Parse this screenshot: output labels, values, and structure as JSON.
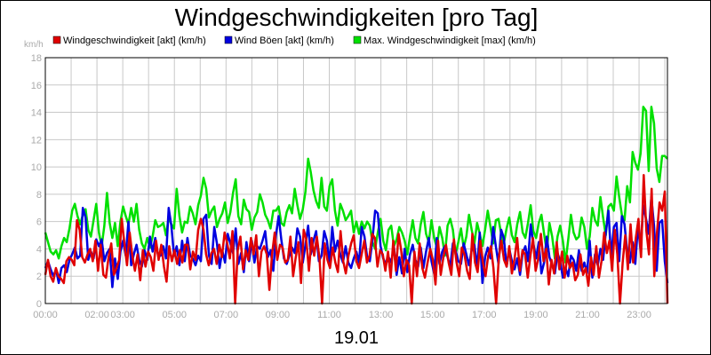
{
  "chart_data": {
    "type": "line",
    "title": "Windgeschwindigkeiten [pro Tag]",
    "xlabel": "19.01",
    "unit_label": "km/h",
    "ylim": [
      0,
      18
    ],
    "y_ticks": [
      0,
      2,
      4,
      6,
      8,
      10,
      12,
      14,
      16,
      18
    ],
    "xlim": [
      0,
      24.1
    ],
    "x_ticks": [
      {
        "t": 0,
        "label": "00:00"
      },
      {
        "t": 2,
        "label": "02:00"
      },
      {
        "t": 3,
        "label": "03:00"
      },
      {
        "t": 5,
        "label": "05:00"
      },
      {
        "t": 7,
        "label": "07:00"
      },
      {
        "t": 9,
        "label": "09:00"
      },
      {
        "t": 11,
        "label": "11:00"
      },
      {
        "t": 13,
        "label": "13:00"
      },
      {
        "t": 15,
        "label": "15:00"
      },
      {
        "t": 17,
        "label": "17:00"
      },
      {
        "t": 19,
        "label": "19:00"
      },
      {
        "t": 21,
        "label": "21:00"
      },
      {
        "t": 23,
        "label": "23:00"
      }
    ],
    "grid": true,
    "legend_position": "top",
    "series": [
      {
        "key": "max",
        "name": "Max. Windgeschwindigkeit [max] (km/h)",
        "color": "#00e000",
        "values": [
          5.2,
          4.5,
          3.8,
          3.6,
          3.9,
          3.3,
          4.2,
          4.8,
          4.5,
          5.5,
          6.8,
          7.3,
          6.4,
          5.8,
          6.5,
          6.9,
          5.4,
          4.9,
          6.1,
          7.3,
          5.2,
          4.2,
          5.7,
          8.1,
          5.9,
          4.8,
          5.9,
          4.2,
          6.0,
          7.1,
          6.4,
          5.8,
          7.0,
          6.0,
          7.3,
          5.4,
          4.4,
          4.0,
          4.8,
          4.1,
          4.9,
          6.1,
          5.6,
          5.7,
          5.9,
          5.0,
          6.3,
          5.8,
          5.5,
          8.4,
          6.4,
          5.2,
          6.0,
          5.9,
          7.1,
          6.6,
          5.8,
          7.2,
          7.9,
          9.2,
          8.4,
          6.3,
          6.8,
          7.1,
          5.6,
          6.2,
          6.6,
          7.4,
          5.9,
          6.7,
          8.1,
          9.1,
          6.4,
          5.8,
          7.6,
          6.9,
          6.7,
          5.4,
          6.3,
          6.7,
          8.0,
          7.4,
          6.5,
          6.1,
          5.5,
          6.8,
          6.8,
          7.1,
          5.9,
          5.7,
          6.7,
          7.2,
          6.6,
          8.4,
          7.2,
          6.2,
          6.9,
          8.2,
          10.6,
          9.6,
          8.3,
          7.5,
          7.0,
          9.2,
          7.1,
          6.8,
          8.6,
          9.1,
          6.8,
          5.7,
          7.3,
          6.8,
          6.1,
          6.4,
          6.8,
          5.2,
          6.0,
          5.1,
          6.0,
          5.5,
          6.0,
          5.7,
          4.5,
          4.0,
          5.2,
          6.2,
          4.6,
          3.9,
          5.4,
          5.7,
          4.2,
          4.7,
          5.6,
          5.2,
          4.6,
          3.6,
          4.9,
          6.1,
          4.8,
          4.4,
          5.8,
          6.7,
          5.1,
          4.5,
          6.1,
          4.8,
          4.1,
          5.6,
          4.8,
          3.5,
          5.7,
          6.2,
          5.4,
          3.6,
          4.5,
          5.5,
          4.1,
          4.9,
          6.5,
          5.4,
          4.4,
          5.9,
          5.1,
          4.2,
          5.4,
          6.8,
          5.6,
          4.4,
          6.1,
          6.2,
          5.1,
          4.4,
          5.5,
          6.3,
          5.0,
          4.5,
          5.8,
          6.7,
          5.2,
          4.8,
          5.9,
          7.2,
          5.3,
          4.8,
          5.9,
          6.5,
          5.1,
          3.8,
          5.9,
          4.9,
          3.3,
          4.9,
          5.7,
          4.6,
          3.0,
          4.7,
          6.5,
          5.2,
          4.7,
          4.9,
          6.3,
          5.6,
          4.0,
          4.9,
          7.0,
          6.1,
          5.7,
          7.8,
          6.3,
          5.0,
          7.1,
          7.3,
          6.8,
          9.3,
          7.8,
          6.5,
          6.1,
          8.6,
          7.4,
          11.1,
          10.3,
          9.8,
          11.0,
          14.4,
          14.1,
          9.7,
          14.4,
          13.2,
          9.9,
          8.9,
          10.8,
          10.8,
          10.6
        ]
      },
      {
        "key": "boeen",
        "name": "Wind Böen [akt] (km/h)",
        "color": "#0000e0",
        "values": [
          2.6,
          3.1,
          2.5,
          2.0,
          2.5,
          1.5,
          2.6,
          2.8,
          2.3,
          3.2,
          3.6,
          4.1,
          3.3,
          3.5,
          7.0,
          6.3,
          3.2,
          3.8,
          3.3,
          4.7,
          4.2,
          4.7,
          3.1,
          3.7,
          4.0,
          1.2,
          3.3,
          1.8,
          3.8,
          4.6,
          3.5,
          6.0,
          2.8,
          3.6,
          4.3,
          3.2,
          2.7,
          3.9,
          3.2,
          4.9,
          3.8,
          4.8,
          3.6,
          3.5,
          4.2,
          3.3,
          7.0,
          5.7,
          3.5,
          4.2,
          2.8,
          4.6,
          3.1,
          4.8,
          3.5,
          3.3,
          2.8,
          3.5,
          3.1,
          6.2,
          6.5,
          3.5,
          2.9,
          5.6,
          4.4,
          2.6,
          3.9,
          3.0,
          5.1,
          4.4,
          3.7,
          5.5,
          2.9,
          3.7,
          2.3,
          4.5,
          3.1,
          4.6,
          3.0,
          4.2,
          4.0,
          4.6,
          5.3,
          3.4,
          3.9,
          2.4,
          5.0,
          6.4,
          4.7,
          3.3,
          2.9,
          3.5,
          4.1,
          3.7,
          5.5,
          4.9,
          3.0,
          4.3,
          5.7,
          3.6,
          4.6,
          5.3,
          3.1,
          3.5,
          5.3,
          4.6,
          2.9,
          5.6,
          3.8,
          4.6,
          3.6,
          3.0,
          4.2,
          3.0,
          2.6,
          3.3,
          3.8,
          3.0,
          5.6,
          4.9,
          3.4,
          3.1,
          4.7,
          6.8,
          6.6,
          4.2,
          3.3,
          2.9,
          3.4,
          3.0,
          4.2,
          2.1,
          3.4,
          2.2,
          4.0,
          2.3,
          3.6,
          4.3,
          3.2,
          2.7,
          4.1,
          2.6,
          3.8,
          4.8,
          3.1,
          2.2,
          4.8,
          2.9,
          3.8,
          4.2,
          3.4,
          2.7,
          4.4,
          3.9,
          3.1,
          2.9,
          4.4,
          3.6,
          2.8,
          3.9,
          4.3,
          2.6,
          5.2,
          1.5,
          3.4,
          4.1,
          3.3,
          5.6,
          4.2,
          2.9,
          5.4,
          4.8,
          2.7,
          4.0,
          3.1,
          2.5,
          3.3,
          2.1,
          3.7,
          4.2,
          3.1,
          5.8,
          4.4,
          3.3,
          4.5,
          2.2,
          3.0,
          4.9,
          3.4,
          2.8,
          2.2,
          3.7,
          3.1,
          1.9,
          2.6,
          2.0,
          3.5,
          3.2,
          2.4,
          3.9,
          2.4,
          3.0,
          2.2,
          4.6,
          1.9,
          3.6,
          2.8,
          4.0,
          3.2,
          5.2,
          6.8,
          3.4,
          5.6,
          5.9,
          3.1,
          6.4,
          5.8,
          3.8,
          3.0,
          4.5,
          2.9,
          5.7,
          3.9,
          7.2,
          6.2,
          5.1,
          7.8,
          5.7,
          2.4,
          5.9,
          6.1,
          3.1,
          1.5
        ]
      },
      {
        "key": "akt",
        "name": "Windgeschwindigkeit [akt] (km/h)",
        "color": "#e00000",
        "values": [
          2.1,
          3.2,
          2.0,
          1.6,
          2.6,
          2.0,
          1.8,
          1.5,
          3.1,
          3.4,
          3.2,
          2.8,
          6.1,
          5.4,
          3.4,
          3.0,
          3.6,
          4.0,
          3.1,
          4.6,
          2.4,
          4.3,
          2.1,
          1.9,
          3.4,
          4.4,
          2.1,
          2.6,
          3.2,
          6.2,
          4.4,
          2.8,
          5.2,
          3.5,
          2.4,
          3.6,
          1.7,
          3.9,
          2.7,
          3.8,
          3.4,
          2.4,
          4.6,
          3.2,
          4.3,
          2.7,
          1.6,
          4.2,
          3.1,
          3.9,
          2.9,
          3.9,
          3.0,
          4.3,
          4.3,
          2.5,
          3.8,
          3.2,
          5.4,
          6.2,
          5.4,
          3.6,
          2.8,
          3.7,
          4.0,
          2.9,
          4.3,
          3.4,
          5.2,
          4.4,
          3.3,
          5.3,
          0.0,
          3.9,
          4.9,
          2.5,
          3.9,
          3.2,
          4.8,
          3.6,
          5.0,
          2.0,
          3.8,
          4.2,
          3.6,
          1.0,
          3.6,
          5.2,
          3.2,
          4.3,
          4.1,
          3.0,
          3.2,
          4.9,
          2.0,
          3.4,
          4.5,
          1.5,
          5.4,
          4.7,
          2.4,
          4.8,
          3.5,
          4.9,
          3.3,
          0.0,
          4.4,
          3.2,
          2.6,
          4.1,
          3.0,
          2.3,
          5.3,
          3.1,
          2.2,
          3.5,
          4.4,
          5.0,
          3.1,
          2.6,
          3.6,
          4.6,
          3.0,
          3.5,
          5.1,
          4.8,
          2.7,
          3.9,
          3.6,
          2.4,
          3.8,
          1.9,
          4.6,
          2.4,
          5.1,
          3.9,
          2.0,
          3.2,
          2.8,
          0.0,
          3.8,
          2.0,
          4.4,
          2.6,
          1.9,
          3.0,
          4.0,
          3.2,
          1.4,
          4.6,
          2.1,
          3.4,
          4.3,
          3.0,
          2.1,
          4.7,
          3.0,
          2.0,
          4.1,
          3.6,
          2.4,
          1.8,
          5.1,
          3.0,
          2.3,
          4.6,
          3.0,
          2.0,
          3.5,
          4.2,
          2.6,
          0.0,
          3.3,
          4.6,
          3.2,
          2.7,
          4.2,
          2.2,
          3.3,
          4.8,
          2.4,
          3.9,
          3.6,
          1.9,
          3.5,
          4.8,
          2.4,
          3.3,
          5.1,
          3.1,
          4.0,
          1.4,
          3.2,
          2.2,
          4.5,
          2.5,
          3.8,
          1.9,
          3.5,
          2.6,
          3.0,
          1.7,
          2.1,
          3.6,
          2.1,
          2.6,
          1.3,
          3.4,
          2.1,
          4.2,
          1.9,
          3.1,
          5.2,
          3.7,
          4.6,
          2.4,
          5.4,
          3.6,
          0.0,
          3.0,
          5.0,
          2.5,
          5.8,
          3.0,
          4.8,
          6.2,
          3.4,
          9.4,
          5.3,
          3.6,
          8.4,
          2.0,
          5.1,
          7.4,
          6.8,
          8.2,
          0.0
        ]
      }
    ]
  },
  "legend": [
    {
      "label": "Windgeschwindigkeit [akt] (km/h)",
      "color": "#e00000"
    },
    {
      "label": "Wind Böen [akt] (km/h)",
      "color": "#0000e0"
    },
    {
      "label": "Max. Windgeschwindigkeit [max] (km/h)",
      "color": "#00e000"
    }
  ],
  "colors": {
    "background": "#ffffff",
    "grid": "#c8c8c8",
    "tick_text": "#aaaaaa"
  }
}
